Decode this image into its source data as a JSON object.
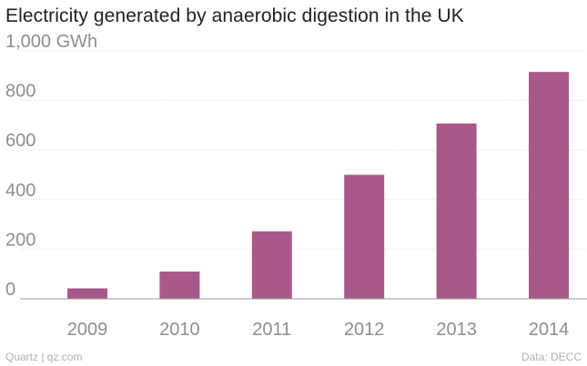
{
  "chart_data": {
    "type": "bar",
    "title": "Electricity generated by anaerobic digestion in the UK",
    "categories": [
      "2009",
      "2010",
      "2011",
      "2012",
      "2013",
      "2014"
    ],
    "values": [
      42,
      110,
      272,
      500,
      707,
      915
    ],
    "ylim": [
      0,
      1000
    ],
    "yticks": [
      0,
      200,
      400,
      600,
      800,
      1000
    ],
    "ytick_labels": [
      "0",
      "200",
      "400",
      "600",
      "800",
      "1,000 GWh"
    ],
    "xlabel": "",
    "ylabel": "",
    "grid": true,
    "colors": {
      "bar": "#a85989"
    },
    "source_left": "Quartz | qz.com",
    "source_right": "Data: DECC"
  }
}
